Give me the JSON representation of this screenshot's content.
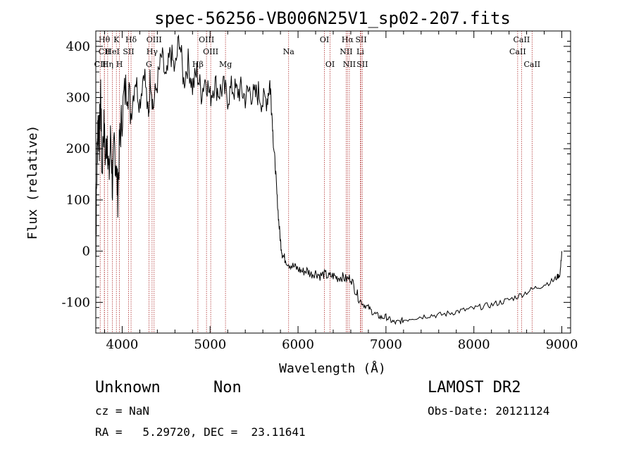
{
  "chart_data": {
    "type": "line",
    "title": "spec-56256-VB006N25V1_sp02-207.fits",
    "xlabel": "Wavelength (Å)",
    "ylabel": "Flux (relative)",
    "xlim": [
      3700,
      9100
    ],
    "ylim": [
      -160,
      430
    ],
    "xticks": [
      4000,
      5000,
      6000,
      7000,
      8000,
      9000
    ],
    "yticks": [
      -100,
      0,
      100,
      200,
      300,
      400
    ],
    "grid": false,
    "series": [
      {
        "points": [
          [
            3700,
            0
          ],
          [
            3705,
            70
          ],
          [
            3715,
            200
          ],
          [
            3725,
            260
          ],
          [
            3740,
            210
          ],
          [
            3755,
            320
          ],
          [
            3770,
            150
          ],
          [
            3790,
            250
          ],
          [
            3810,
            180
          ],
          [
            3830,
            230
          ],
          [
            3850,
            140
          ],
          [
            3870,
            230
          ],
          [
            3890,
            120
          ],
          [
            3910,
            210
          ],
          [
            3930,
            170
          ],
          [
            3950,
            110
          ],
          [
            3970,
            210
          ],
          [
            3990,
            250
          ],
          [
            4020,
            300
          ],
          [
            4060,
            330
          ],
          [
            4100,
            270
          ],
          [
            4150,
            340
          ],
          [
            4200,
            290
          ],
          [
            4250,
            360
          ],
          [
            4300,
            250
          ],
          [
            4320,
            350
          ],
          [
            4350,
            280
          ],
          [
            4400,
            330
          ],
          [
            4450,
            380
          ],
          [
            4500,
            330
          ],
          [
            4550,
            390
          ],
          [
            4600,
            350
          ],
          [
            4650,
            420
          ],
          [
            4700,
            330
          ],
          [
            4750,
            370
          ],
          [
            4800,
            320
          ],
          [
            4850,
            350
          ],
          [
            4900,
            310
          ],
          [
            4950,
            340
          ],
          [
            5000,
            300
          ],
          [
            5050,
            330
          ],
          [
            5100,
            310
          ],
          [
            5150,
            320
          ],
          [
            5200,
            300
          ],
          [
            5250,
            320
          ],
          [
            5300,
            310
          ],
          [
            5350,
            315
          ],
          [
            5400,
            300
          ],
          [
            5450,
            315
          ],
          [
            5500,
            300
          ],
          [
            5550,
            310
          ],
          [
            5600,
            290
          ],
          [
            5650,
            300
          ],
          [
            5680,
            330
          ],
          [
            5700,
            280
          ],
          [
            5720,
            210
          ],
          [
            5740,
            170
          ],
          [
            5760,
            110
          ],
          [
            5780,
            60
          ],
          [
            5800,
            20
          ],
          [
            5820,
            -5
          ],
          [
            5850,
            -15
          ],
          [
            5900,
            -25
          ],
          [
            5950,
            -30
          ],
          [
            6000,
            -35
          ],
          [
            6050,
            -40
          ],
          [
            6100,
            -38
          ],
          [
            6150,
            -45
          ],
          [
            6200,
            -42
          ],
          [
            6250,
            -48
          ],
          [
            6300,
            -45
          ],
          [
            6350,
            -50
          ],
          [
            6400,
            -48
          ],
          [
            6450,
            -52
          ],
          [
            6500,
            -50
          ],
          [
            6550,
            -55
          ],
          [
            6600,
            -52
          ],
          [
            6650,
            -75
          ],
          [
            6700,
            -95
          ],
          [
            6750,
            -105
          ],
          [
            6800,
            -110
          ],
          [
            6850,
            -120
          ],
          [
            6900,
            -125
          ],
          [
            6950,
            -130
          ],
          [
            7000,
            -128
          ],
          [
            7050,
            -135
          ],
          [
            7100,
            -140
          ],
          [
            7150,
            -138
          ],
          [
            7200,
            -135
          ],
          [
            7300,
            -130
          ],
          [
            7400,
            -128
          ],
          [
            7500,
            -125
          ],
          [
            7600,
            -125
          ],
          [
            7700,
            -122
          ],
          [
            7800,
            -118
          ],
          [
            7900,
            -115
          ],
          [
            8000,
            -112
          ],
          [
            8100,
            -108
          ],
          [
            8200,
            -105
          ],
          [
            8300,
            -100
          ],
          [
            8400,
            -95
          ],
          [
            8500,
            -88
          ],
          [
            8600,
            -80
          ],
          [
            8700,
            -72
          ],
          [
            8800,
            -65
          ],
          [
            8900,
            -58
          ],
          [
            8950,
            -50
          ],
          [
            8980,
            -45
          ],
          [
            9000,
            0
          ]
        ]
      }
    ],
    "lines": [
      {
        "name": "Hθ",
        "x": 3797,
        "row": 0
      },
      {
        "name": "CII",
        "x": 3799,
        "row": 1
      },
      {
        "name": "CII",
        "x": 3750,
        "row": 2
      },
      {
        "name": "K",
        "x": 3934,
        "row": 0
      },
      {
        "name": "HeI",
        "x": 3889,
        "row": 1
      },
      {
        "name": "Hη",
        "x": 3835,
        "row": 2
      },
      {
        "name": "Hδ",
        "x": 4101,
        "row": 0
      },
      {
        "name": "SII",
        "x": 4072,
        "row": 1
      },
      {
        "name": "H",
        "x": 3969,
        "row": 2
      },
      {
        "name": "OIII",
        "x": 4363,
        "row": 0
      },
      {
        "name": "Hγ",
        "x": 4340,
        "row": 1
      },
      {
        "name": "G",
        "x": 4304,
        "row": 2
      },
      {
        "name": "OIII",
        "x": 4959,
        "row": 0
      },
      {
        "name": "OIII",
        "x": 5007,
        "row": 1
      },
      {
        "name": "Hβ",
        "x": 4861,
        "row": 2
      },
      {
        "name": "Mg",
        "x": 5175,
        "row": 2
      },
      {
        "name": "Na",
        "x": 5893,
        "row": 1
      },
      {
        "name": "OI",
        "x": 6300,
        "row": 0
      },
      {
        "name": "OI",
        "x": 6364,
        "row": 2
      },
      {
        "name": "Hα",
        "x": 6563,
        "row": 0
      },
      {
        "name": "NII",
        "x": 6548,
        "row": 1
      },
      {
        "name": "NII",
        "x": 6584,
        "row": 2
      },
      {
        "name": "SII",
        "x": 6717,
        "row": 0
      },
      {
        "name": "Li",
        "x": 6708,
        "row": 1
      },
      {
        "name": "SII",
        "x": 6731,
        "row": 2
      },
      {
        "name": "CaII",
        "x": 8542,
        "row": 0
      },
      {
        "name": "CaII",
        "x": 8498,
        "row": 1
      },
      {
        "name": "CaII",
        "x": 8662,
        "row": 2
      }
    ]
  },
  "footer": {
    "class_label": "Unknown",
    "subclass_label": "Non",
    "survey": "LAMOST DR2",
    "cz_text": "cz = NaN",
    "obs_date": "Obs-Date: 20121124",
    "coords": "RA =   5.29720, DEC =  23.11641"
  }
}
